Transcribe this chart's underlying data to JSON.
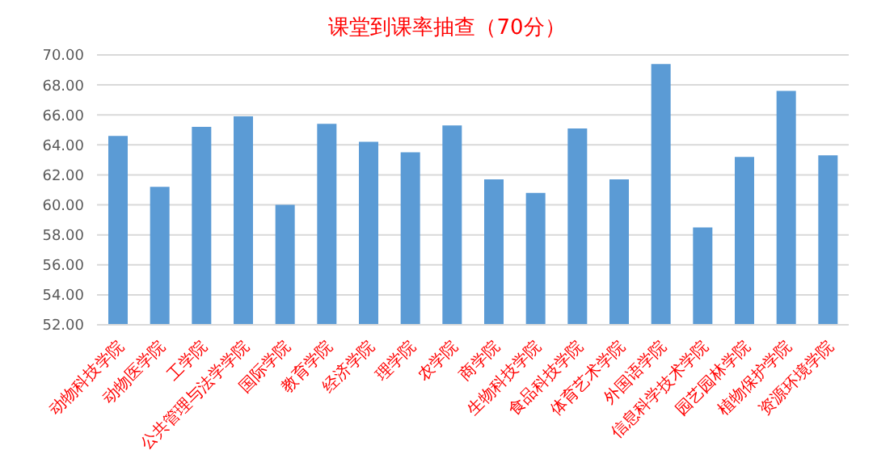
{
  "chart_data": {
    "type": "bar",
    "title": "课堂到课率抽查（70分）",
    "categories": [
      "动物科技学院",
      "动物医学院",
      "工学院",
      "公共管理与法学学院",
      "国际学院",
      "教育学院",
      "经济学院",
      "理学院",
      "农学院",
      "商学院",
      "生物科技学院",
      "食品科技学院",
      "体育艺术学院",
      "外国语学院",
      "信息科学技术学院",
      "园艺园林学院",
      "植物保护学院",
      "资源环境学院"
    ],
    "values": [
      64.6,
      61.2,
      65.2,
      65.9,
      60.0,
      65.4,
      64.2,
      63.5,
      65.3,
      61.7,
      60.8,
      65.1,
      61.7,
      69.4,
      58.5,
      63.2,
      67.6,
      63.3
    ],
    "color": "#5b9bd5",
    "ylim": [
      52,
      70
    ],
    "yticks": [
      {
        "value": 52,
        "label": "52.00"
      },
      {
        "value": 54,
        "label": "54.00"
      },
      {
        "value": 56,
        "label": "56.00"
      },
      {
        "value": 58,
        "label": "58.00"
      },
      {
        "value": 60,
        "label": "60.00"
      },
      {
        "value": 62,
        "label": "62.00"
      },
      {
        "value": 64,
        "label": "64.00"
      },
      {
        "value": 66,
        "label": "66.00"
      },
      {
        "value": 68,
        "label": "68.00"
      },
      {
        "value": 70,
        "label": "70.00"
      }
    ],
    "grid": "y"
  }
}
